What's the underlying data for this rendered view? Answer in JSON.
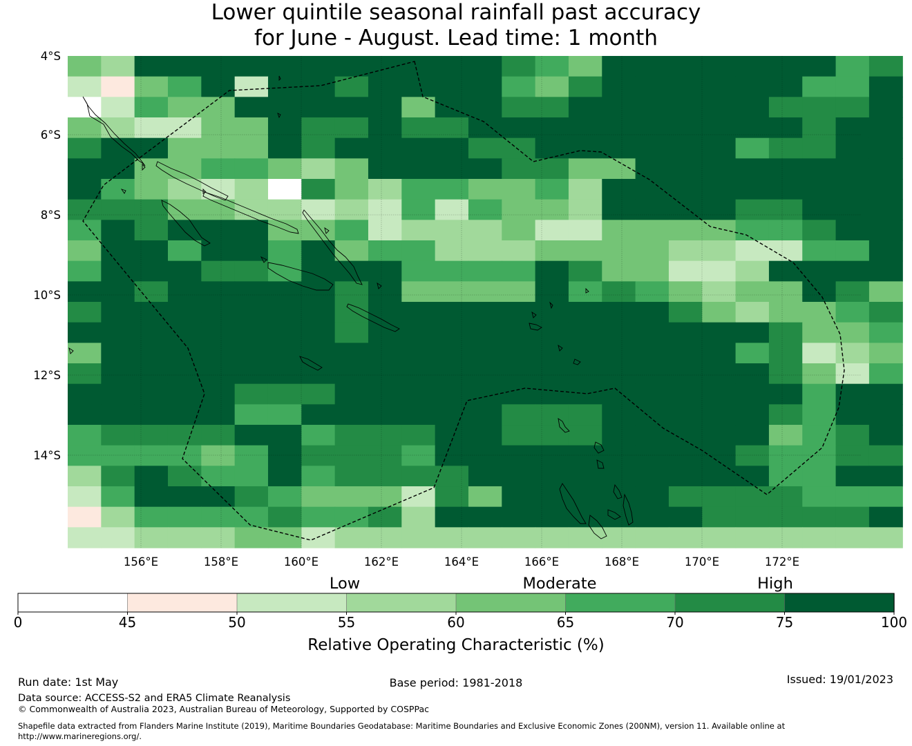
{
  "title_line1": "Lower quintile seasonal rainfall past accuracy",
  "title_line2": "for June - August. Lead time: 1 month",
  "map": {
    "lat_labels": [
      "4°S",
      "6°S",
      "8°S",
      "10°S",
      "12°S",
      "14°S"
    ],
    "lon_labels": [
      "156°E",
      "158°E",
      "160°E",
      "162°E",
      "164°E",
      "166°E",
      "168°E",
      "170°E",
      "172°E"
    ],
    "grid_colors": [
      "#ffffff",
      "#fde9df",
      "#c7e9c0",
      "#a1d99b",
      "#74c476",
      "#41ab5d",
      "#238b45",
      "#005a32"
    ],
    "grid_rows": [
      "4377777777777654777777756",
      "2145727767777546777777557",
      "0254477777477667777776667",
      "4322447667667777777777677",
      "6774447677776677777756677",
      "7744554347777664477777777",
      "7543230643554453777777777",
      "6664433232525443777766777",
      "5767774452333422444455677",
      "4775775745533344443322557",
      "5777665777555576442237777",
      "7767777767444475654344764",
      "6777777767777777776434456",
      "7777777767777777777776445",
      "4777777777777777777756234",
      "6777777777777777777776425",
      "7777766677777777777777577",
      "7777755777777666777776577",
      "5666677566677666777774567",
      "5555457666577777777765566",
      "3676557566667777777775577",
      "2577765444264777776666555",
      "1355556556377777777666667",
      "2233344233333333333333333"
    ]
  },
  "colorbar": {
    "category_low": "Low",
    "category_moderate": "Moderate",
    "category_high": "High",
    "ticks": [
      "0",
      "45",
      "50",
      "55",
      "60",
      "65",
      "70",
      "75",
      "100"
    ],
    "colors": [
      "#ffffff",
      "#fde9df",
      "#c7e9c0",
      "#a1d99b",
      "#74c476",
      "#41ab5d",
      "#238b45",
      "#005a32"
    ],
    "title": "Relative Operating Characteristic (%)"
  },
  "footer": {
    "run_date": "Run date: 1st May",
    "base_period": "Base period: 1981-2018",
    "issued": "Issued: 19/01/2023",
    "data_source": "Data source: ACCESS-S2 and ERA5 Climate Reanalysis",
    "copyright": "© Commonwealth of Australia 2023, Australian Bureau of Meteorology, Supported by COSPPac",
    "shapefile_line1": "Shapefile data extracted from Flanders Marine Institute (2019), Maritime Boundaries Geodatabase: Maritime Boundaries and Exclusive Economic Zones (200NM), version 11. Available online at",
    "shapefile_line2": "http://www.marineregions.org/."
  }
}
